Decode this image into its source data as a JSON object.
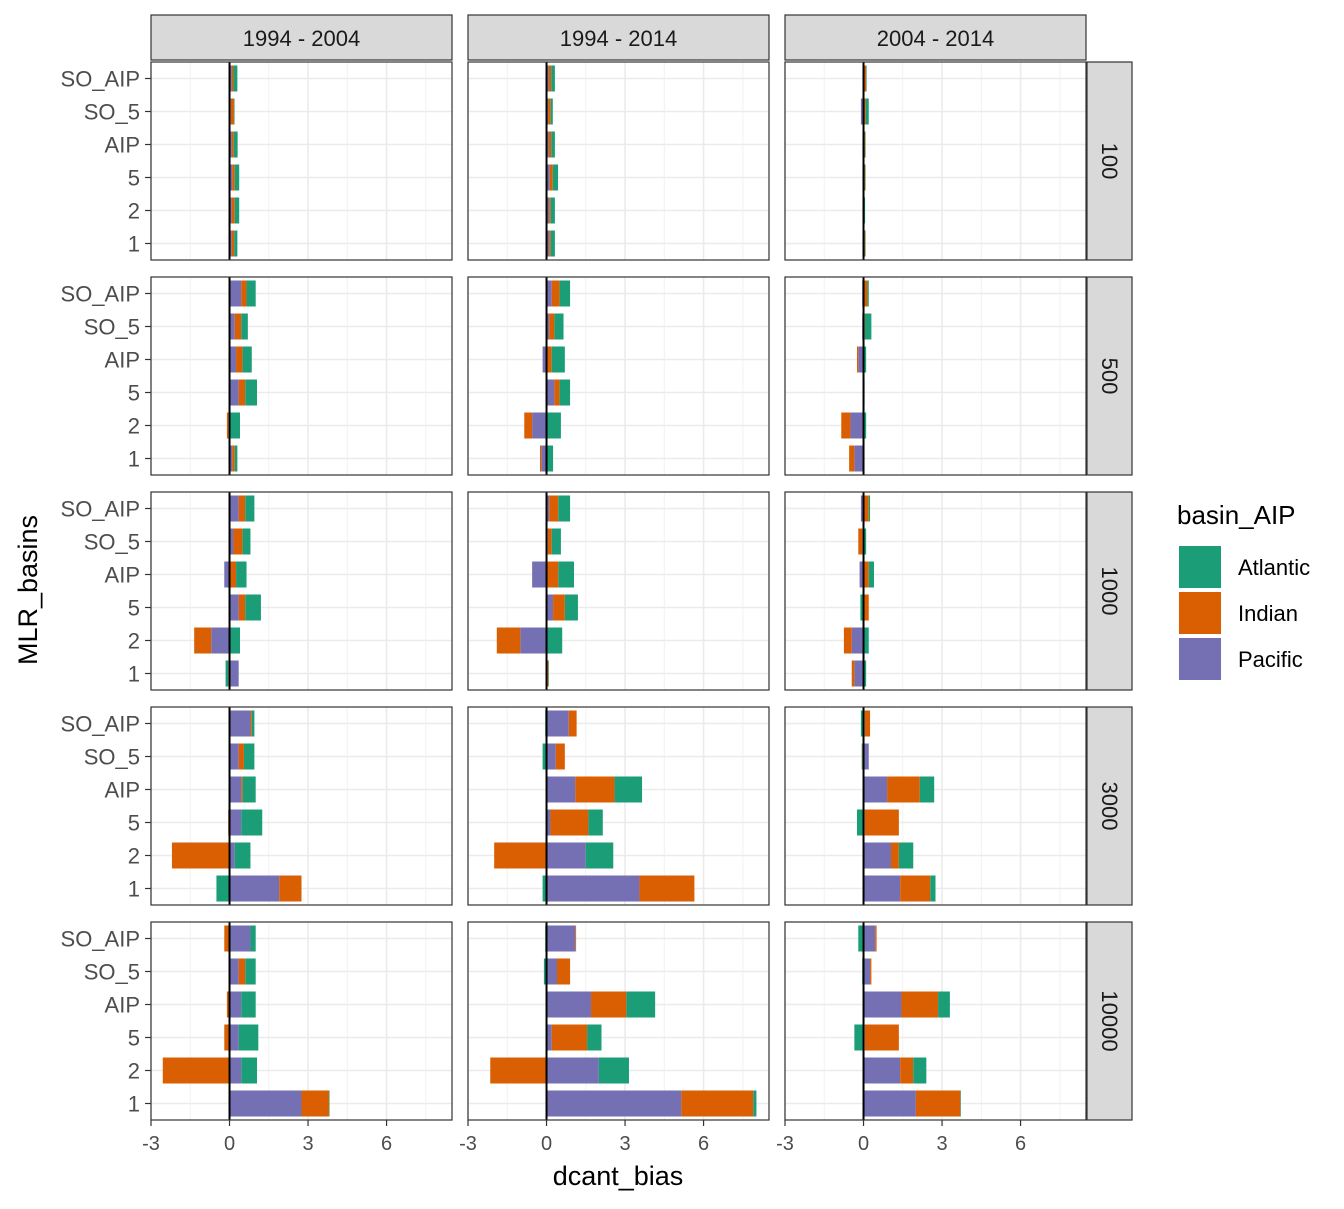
{
  "chart_data": {
    "type": "bar",
    "stacked": true,
    "orientation": "horizontal",
    "facet_columns": [
      "1994 - 2004",
      "1994 - 2014",
      "2004 - 2014"
    ],
    "facet_rows": [
      "100",
      "500",
      "1000",
      "3000",
      "10000"
    ],
    "categories": [
      "SO_AIP",
      "SO_5",
      "AIP",
      "5",
      "2",
      "1"
    ],
    "xlabel": "dcant_bias",
    "ylabel": "MLR_basins",
    "xlim": [
      -3,
      8.5
    ],
    "xticks": [
      -3,
      0,
      3,
      6
    ],
    "legend": {
      "title": "basin_AIP",
      "position": "right",
      "entries": [
        "Atlantic",
        "Indian",
        "Pacific"
      ]
    },
    "colors": {
      "Atlantic": "#1B9E77",
      "Indian": "#D95F02",
      "Pacific": "#7570B3"
    },
    "series_order": [
      "Pacific",
      "Indian",
      "Atlantic"
    ],
    "panels": [
      {
        "row": "100",
        "col": "1994 - 2004",
        "bars": {
          "SO_AIP": {
            "Pacific": 0.08,
            "Indian": 0.07,
            "Atlantic": 0.15
          },
          "SO_5": {
            "Pacific": 0.05,
            "Indian": 0.12,
            "Atlantic": 0.02
          },
          "AIP": {
            "Pacific": 0.08,
            "Indian": 0.08,
            "Atlantic": 0.15
          },
          "5": {
            "Pacific": 0.1,
            "Indian": 0.1,
            "Atlantic": 0.17
          },
          "2": {
            "Pacific": 0.08,
            "Indian": 0.12,
            "Atlantic": 0.17
          },
          "1": {
            "Pacific": 0.08,
            "Indian": 0.1,
            "Atlantic": 0.12
          }
        }
      },
      {
        "row": "100",
        "col": "1994 - 2014",
        "bars": {
          "SO_AIP": {
            "Pacific": 0.08,
            "Indian": 0.1,
            "Atlantic": 0.14
          },
          "SO_5": {
            "Pacific": 0.06,
            "Indian": 0.1,
            "Atlantic": 0.08
          },
          "AIP": {
            "Pacific": 0.08,
            "Indian": 0.1,
            "Atlantic": 0.14
          },
          "5": {
            "Pacific": 0.12,
            "Indian": 0.12,
            "Atlantic": 0.2
          },
          "2": {
            "Pacific": 0.1,
            "Indian": 0.06,
            "Atlantic": 0.16
          },
          "1": {
            "Pacific": 0.1,
            "Indian": 0.06,
            "Atlantic": 0.16
          }
        }
      },
      {
        "row": "100",
        "col": "2004 - 2014",
        "bars": {
          "SO_AIP": {
            "Pacific": -0.04,
            "Indian": 0.1,
            "Atlantic": 0.02
          },
          "SO_5": {
            "Pacific": -0.1,
            "Indian": 0.08,
            "Atlantic": 0.12
          },
          "AIP": {
            "Pacific": -0.04,
            "Indian": 0.06,
            "Atlantic": 0.02
          },
          "5": {
            "Pacific": -0.04,
            "Indian": 0.06,
            "Atlantic": 0.02
          },
          "2": {
            "Pacific": -0.04,
            "Indian": 0.02,
            "Atlantic": 0.04
          },
          "1": {
            "Pacific": -0.04,
            "Indian": 0.06,
            "Atlantic": 0.02
          }
        }
      },
      {
        "row": "500",
        "col": "1994 - 2004",
        "bars": {
          "SO_AIP": {
            "Pacific": 0.45,
            "Indian": 0.2,
            "Atlantic": 0.35
          },
          "SO_5": {
            "Pacific": 0.2,
            "Indian": 0.25,
            "Atlantic": 0.25
          },
          "AIP": {
            "Pacific": 0.25,
            "Indian": 0.25,
            "Atlantic": 0.35
          },
          "5": {
            "Pacific": 0.35,
            "Indian": 0.25,
            "Atlantic": 0.45
          },
          "2": {
            "Pacific": -0.05,
            "Indian": -0.05,
            "Atlantic": 0.4
          },
          "1": {
            "Pacific": 0.1,
            "Indian": 0.1,
            "Atlantic": 0.1
          }
        }
      },
      {
        "row": "500",
        "col": "1994 - 2014",
        "bars": {
          "SO_AIP": {
            "Pacific": 0.2,
            "Indian": 0.3,
            "Atlantic": 0.4
          },
          "SO_5": {
            "Pacific": 0.1,
            "Indian": 0.2,
            "Atlantic": 0.35
          },
          "AIP": {
            "Pacific": -0.15,
            "Indian": 0.2,
            "Atlantic": 0.5
          },
          "5": {
            "Pacific": 0.3,
            "Indian": 0.2,
            "Atlantic": 0.4
          },
          "2": {
            "Pacific": -0.55,
            "Indian": -0.3,
            "Atlantic": 0.55
          },
          "1": {
            "Pacific": -0.2,
            "Indian": -0.05,
            "Atlantic": 0.25
          }
        }
      },
      {
        "row": "500",
        "col": "2004 - 2014",
        "bars": {
          "SO_AIP": {
            "Pacific": -0.05,
            "Indian": 0.15,
            "Atlantic": 0.05
          },
          "SO_5": {
            "Pacific": -0.05,
            "Indian": 0.05,
            "Atlantic": 0.25
          },
          "AIP": {
            "Pacific": -0.2,
            "Indian": -0.05,
            "Atlantic": 0.1
          },
          "5": {
            "Pacific": -0.02,
            "Indian": 0.02,
            "Atlantic": 0.02
          },
          "2": {
            "Pacific": -0.5,
            "Indian": -0.35,
            "Atlantic": 0.1
          },
          "1": {
            "Pacific": -0.35,
            "Indian": -0.2,
            "Atlantic": 0.02
          }
        }
      },
      {
        "row": "1000",
        "col": "1994 - 2004",
        "bars": {
          "SO_AIP": {
            "Pacific": 0.35,
            "Indian": 0.25,
            "Atlantic": 0.35
          },
          "SO_5": {
            "Pacific": 0.15,
            "Indian": 0.35,
            "Atlantic": 0.3
          },
          "AIP": {
            "Pacific": -0.2,
            "Indian": 0.25,
            "Atlantic": 0.4
          },
          "5": {
            "Pacific": 0.35,
            "Indian": 0.25,
            "Atlantic": 0.6
          },
          "2": {
            "Pacific": -0.7,
            "Indian": -0.65,
            "Atlantic": 0.4
          },
          "1": {
            "Pacific": 0.35,
            "Indian": -0.05,
            "Atlantic": -0.1
          }
        }
      },
      {
        "row": "1000",
        "col": "1994 - 2014",
        "bars": {
          "SO_AIP": {
            "Pacific": 0.1,
            "Indian": 0.35,
            "Atlantic": 0.45
          },
          "SO_5": {
            "Pacific": 0.05,
            "Indian": 0.15,
            "Atlantic": 0.35
          },
          "AIP": {
            "Pacific": -0.55,
            "Indian": 0.45,
            "Atlantic": 0.6
          },
          "5": {
            "Pacific": 0.25,
            "Indian": 0.45,
            "Atlantic": 0.5
          },
          "2": {
            "Pacific": -1.0,
            "Indian": -0.9,
            "Atlantic": 0.6
          },
          "1": {
            "Pacific": -0.03,
            "Indian": 0.07,
            "Atlantic": 0.02
          }
        }
      },
      {
        "row": "1000",
        "col": "2004 - 2014",
        "bars": {
          "SO_AIP": {
            "Pacific": -0.1,
            "Indian": 0.2,
            "Atlantic": 0.05
          },
          "SO_5": {
            "Pacific": -0.05,
            "Indian": -0.15,
            "Atlantic": 0.1
          },
          "AIP": {
            "Pacific": -0.15,
            "Indian": 0.2,
            "Atlantic": 0.2
          },
          "5": {
            "Pacific": -0.02,
            "Indian": 0.2,
            "Atlantic": -0.1
          },
          "2": {
            "Pacific": -0.45,
            "Indian": -0.3,
            "Atlantic": 0.2
          },
          "1": {
            "Pacific": -0.35,
            "Indian": -0.1,
            "Atlantic": 0.1
          }
        }
      },
      {
        "row": "3000",
        "col": "1994 - 2004",
        "bars": {
          "SO_AIP": {
            "Pacific": 0.8,
            "Indian": 0.05,
            "Atlantic": 0.1
          },
          "SO_5": {
            "Pacific": 0.35,
            "Indian": 0.2,
            "Atlantic": 0.4
          },
          "AIP": {
            "Pacific": 0.45,
            "Indian": 0.05,
            "Atlantic": 0.5
          },
          "5": {
            "Pacific": 0.45,
            "Indian": -0.05,
            "Atlantic": 0.8
          },
          "2": {
            "Pacific": 0.2,
            "Indian": -2.2,
            "Atlantic": 0.6
          },
          "1": {
            "Pacific": 1.9,
            "Indian": 0.85,
            "Atlantic": -0.5
          }
        }
      },
      {
        "row": "3000",
        "col": "1994 - 2014",
        "bars": {
          "SO_AIP": {
            "Pacific": 0.85,
            "Indian": 0.3,
            "Atlantic": -0.05
          },
          "SO_5": {
            "Pacific": 0.35,
            "Indian": 0.35,
            "Atlantic": -0.15
          },
          "AIP": {
            "Pacific": 1.1,
            "Indian": 1.5,
            "Atlantic": 1.05
          },
          "5": {
            "Pacific": 0.15,
            "Indian": 1.45,
            "Atlantic": 0.55
          },
          "2": {
            "Pacific": 1.5,
            "Indian": -2.0,
            "Atlantic": 1.05
          },
          "1": {
            "Pacific": 3.55,
            "Indian": 2.1,
            "Atlantic": -0.15
          }
        }
      },
      {
        "row": "3000",
        "col": "2004 - 2014",
        "bars": {
          "SO_AIP": {
            "Pacific": 0.05,
            "Indian": 0.2,
            "Atlantic": -0.1
          },
          "SO_5": {
            "Pacific": 0.2,
            "Indian": -0.05,
            "Atlantic": -0.02
          },
          "AIP": {
            "Pacific": 0.9,
            "Indian": 1.25,
            "Atlantic": 0.55
          },
          "5": {
            "Pacific": 0.05,
            "Indian": 1.3,
            "Atlantic": -0.25
          },
          "2": {
            "Pacific": 1.05,
            "Indian": 0.3,
            "Atlantic": 0.55
          },
          "1": {
            "Pacific": 1.4,
            "Indian": 1.15,
            "Atlantic": 0.2
          }
        }
      },
      {
        "row": "10000",
        "col": "1994 - 2004",
        "bars": {
          "SO_AIP": {
            "Pacific": 0.8,
            "Indian": -0.2,
            "Atlantic": 0.2
          },
          "SO_5": {
            "Pacific": 0.35,
            "Indian": 0.25,
            "Atlantic": 0.4
          },
          "AIP": {
            "Pacific": 0.45,
            "Indian": -0.1,
            "Atlantic": 0.55
          },
          "5": {
            "Pacific": 0.35,
            "Indian": -0.2,
            "Atlantic": 0.75
          },
          "2": {
            "Pacific": 0.45,
            "Indian": -2.55,
            "Atlantic": 0.6
          },
          "1": {
            "Pacific": 2.75,
            "Indian": 1.05,
            "Atlantic": 0.02
          }
        }
      },
      {
        "row": "10000",
        "col": "1994 - 2014",
        "bars": {
          "SO_AIP": {
            "Pacific": 1.1,
            "Indian": 0.03,
            "Atlantic": -0.05
          },
          "SO_5": {
            "Pacific": 0.4,
            "Indian": 0.5,
            "Atlantic": -0.1
          },
          "AIP": {
            "Pacific": 1.7,
            "Indian": 1.35,
            "Atlantic": 1.1
          },
          "5": {
            "Pacific": 0.2,
            "Indian": 1.35,
            "Atlantic": 0.55
          },
          "2": {
            "Pacific": 2.0,
            "Indian": -2.15,
            "Atlantic": 1.15
          },
          "1": {
            "Pacific": 5.15,
            "Indian": 2.75,
            "Atlantic": 0.12
          }
        }
      },
      {
        "row": "10000",
        "col": "2004 - 2014",
        "bars": {
          "SO_AIP": {
            "Pacific": 0.45,
            "Indian": 0.05,
            "Atlantic": -0.2
          },
          "SO_5": {
            "Pacific": 0.25,
            "Indian": 0.05,
            "Atlantic": -0.05
          },
          "AIP": {
            "Pacific": 1.45,
            "Indian": 1.4,
            "Atlantic": 0.45
          },
          "5": {
            "Pacific": 0.05,
            "Indian": 1.3,
            "Atlantic": -0.35
          },
          "2": {
            "Pacific": 1.4,
            "Indian": 0.5,
            "Atlantic": 0.5
          },
          "1": {
            "Pacific": 2.0,
            "Indian": 1.7,
            "Atlantic": 0.02
          }
        }
      }
    ]
  }
}
